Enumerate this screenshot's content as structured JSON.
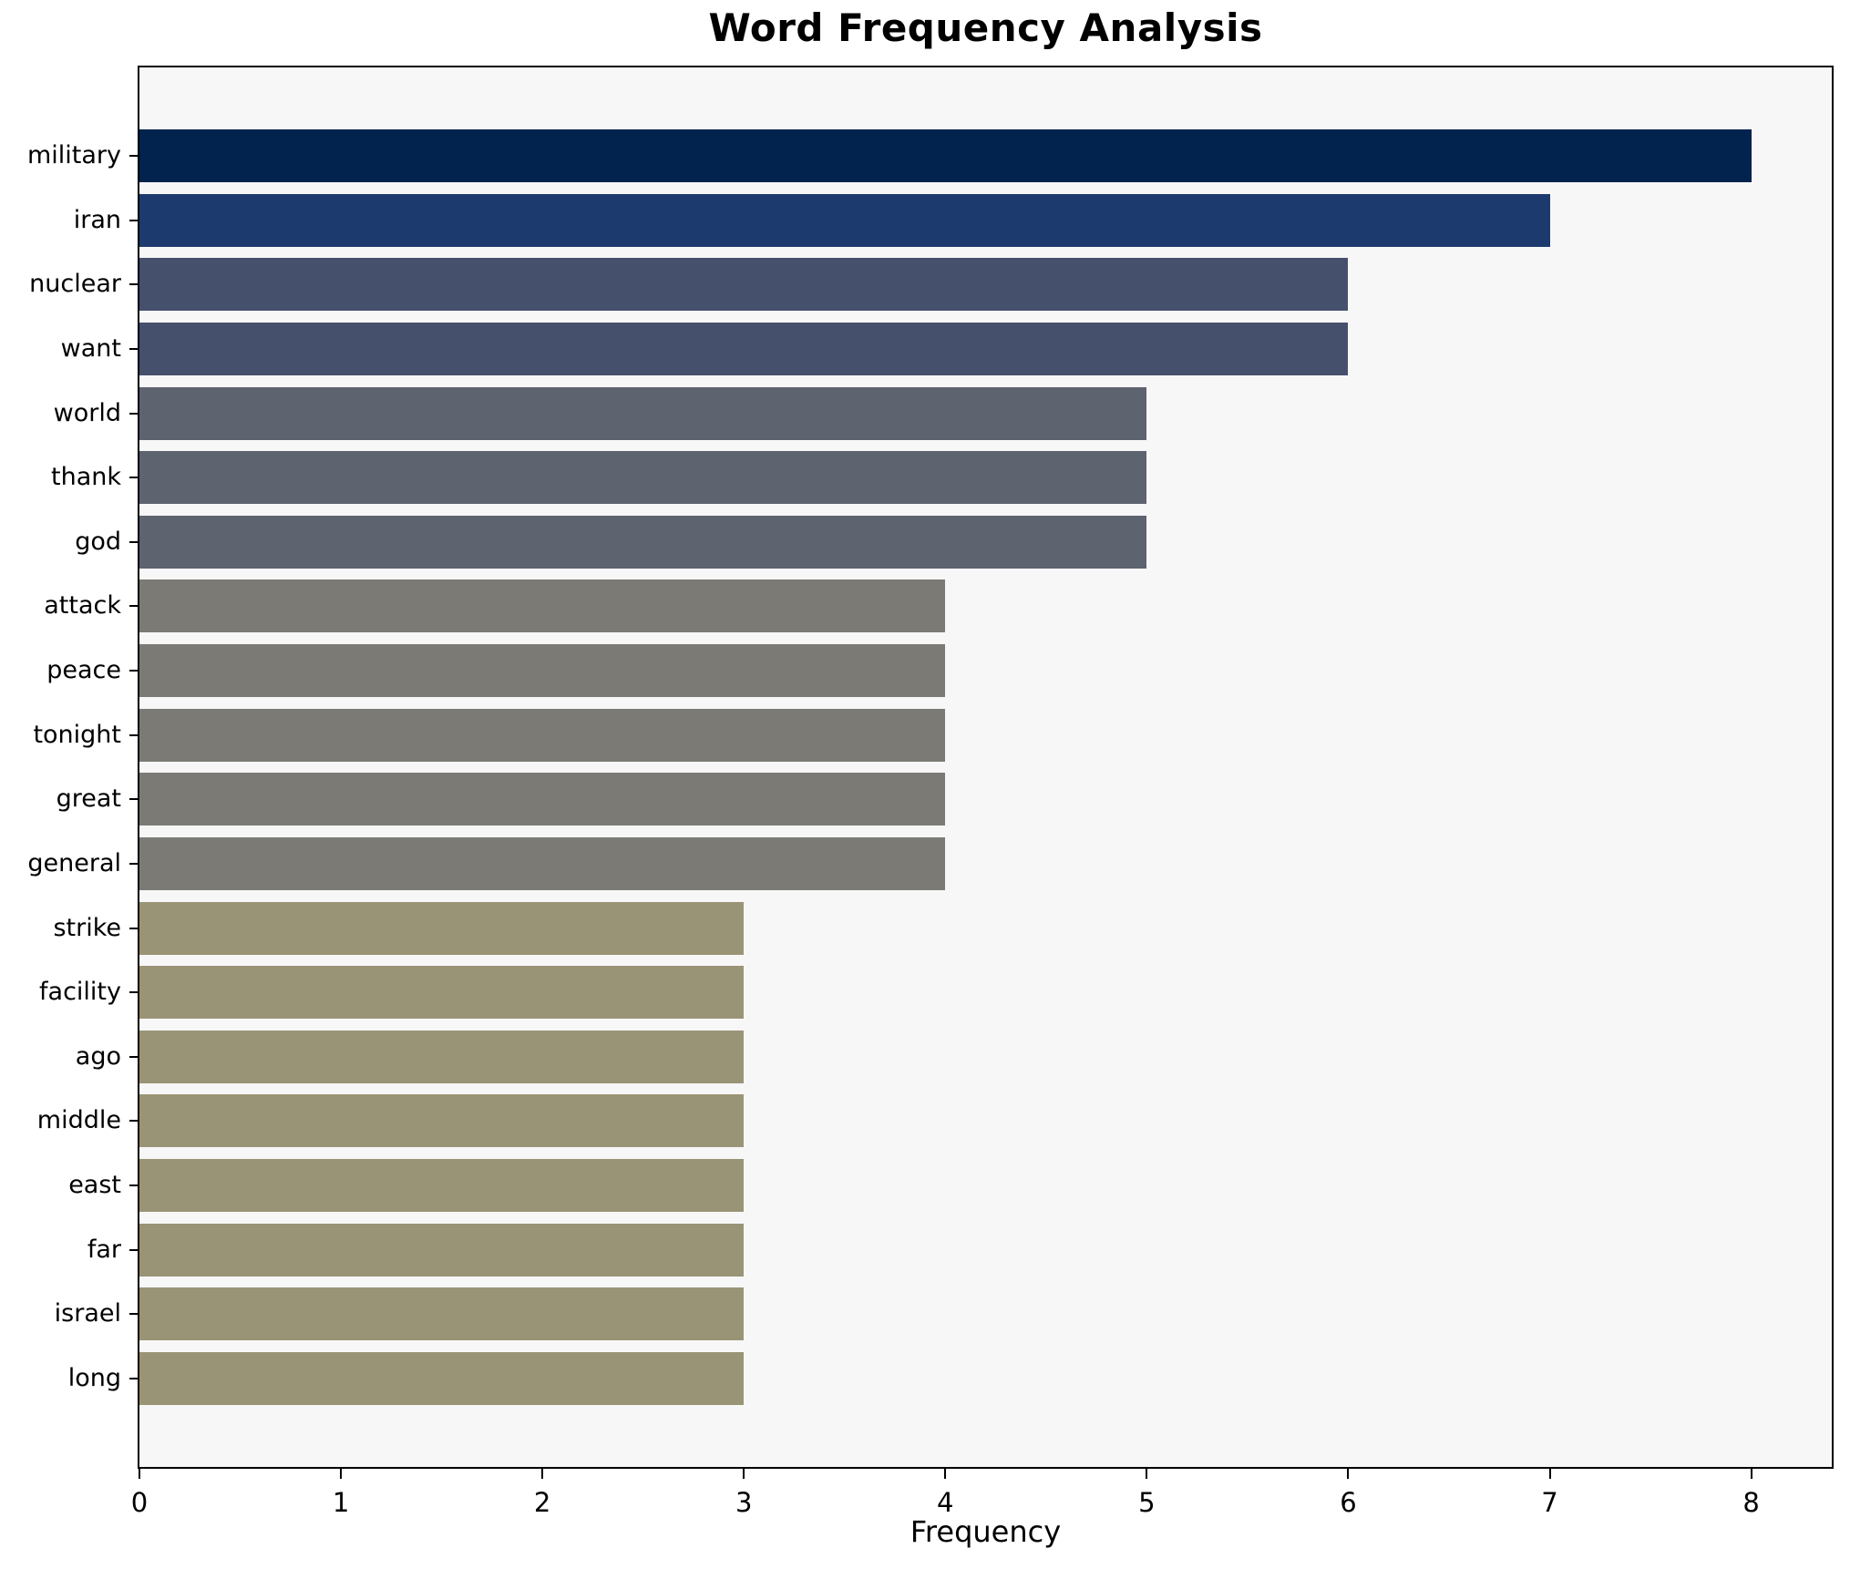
{
  "chart_data": {
    "type": "bar",
    "orientation": "horizontal",
    "title": "Word Frequency Analysis",
    "xlabel": "Frequency",
    "ylabel": "",
    "categories": [
      "military",
      "iran",
      "nuclear",
      "want",
      "world",
      "thank",
      "god",
      "attack",
      "peace",
      "tonight",
      "great",
      "general",
      "strike",
      "facility",
      "ago",
      "middle",
      "east",
      "far",
      "israel",
      "long"
    ],
    "values": [
      8,
      7,
      6,
      6,
      5,
      5,
      5,
      4,
      4,
      4,
      4,
      4,
      3,
      3,
      3,
      3,
      3,
      3,
      3,
      3
    ],
    "x_ticks": [
      0,
      1,
      2,
      3,
      4,
      5,
      6,
      7,
      8
    ],
    "xlim": [
      0,
      8.4
    ],
    "grid": false,
    "legend": null,
    "colors_by_value": {
      "8": "#01234e",
      "7": "#1d3a6e",
      "6": "#45506c",
      "5": "#5e6370",
      "4": "#7b7a74",
      "3": "#9a9476"
    },
    "plot_background": "#f7f7f7",
    "figure_background": "#ffffff",
    "axis_color": "#000000"
  }
}
